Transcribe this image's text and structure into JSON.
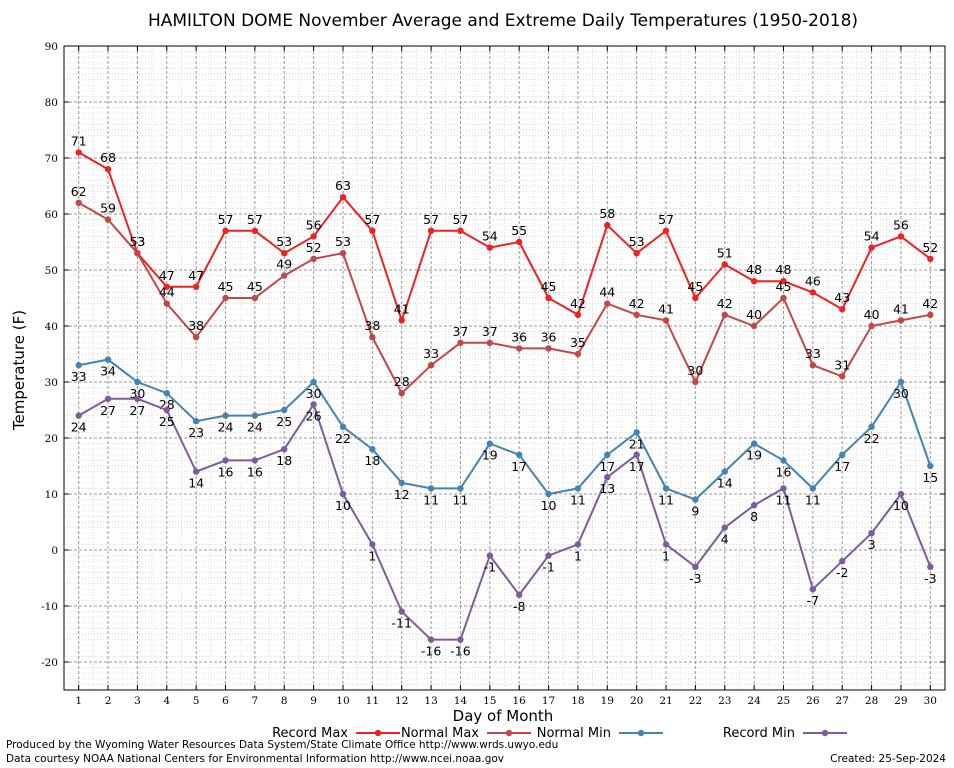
{
  "chart_data": {
    "type": "line",
    "title": "HAMILTON DOME November Average and Extreme Daily Temperatures (1950-2018)",
    "xlabel": "Day of Month",
    "ylabel": "Temperature (F)",
    "xlim": [
      0.5,
      30.5
    ],
    "ylim": [
      -25,
      90
    ],
    "yticks": [
      -20,
      -10,
      0,
      10,
      20,
      30,
      40,
      50,
      60,
      70,
      80,
      90
    ],
    "x": [
      1,
      2,
      3,
      4,
      5,
      6,
      7,
      8,
      9,
      10,
      11,
      12,
      13,
      14,
      15,
      16,
      17,
      18,
      19,
      20,
      21,
      22,
      23,
      24,
      25,
      26,
      27,
      28,
      29,
      30
    ],
    "grid": true,
    "legend_position": "bottom",
    "series": [
      {
        "name": "Record Max",
        "color": "#ee2222",
        "label_pos": "above",
        "values": [
          71,
          68,
          53,
          47,
          47,
          57,
          57,
          53,
          56,
          63,
          57,
          41,
          57,
          57,
          54,
          55,
          45,
          42,
          58,
          53,
          57,
          45,
          51,
          48,
          48,
          46,
          43,
          54,
          56,
          52
        ]
      },
      {
        "name": "Normal Max",
        "color": "#c04848",
        "label_pos": "above",
        "values": [
          62,
          59,
          53,
          44,
          38,
          45,
          45,
          49,
          52,
          53,
          38,
          28,
          33,
          37,
          37,
          36,
          36,
          35,
          44,
          42,
          41,
          30,
          42,
          40,
          45,
          33,
          31,
          40,
          41,
          42
        ]
      },
      {
        "name": "Normal Min",
        "color": "#4682b4",
        "label_pos": "below",
        "values": [
          33,
          34,
          30,
          28,
          23,
          24,
          24,
          25,
          30,
          22,
          18,
          12,
          11,
          11,
          19,
          17,
          10,
          11,
          17,
          21,
          11,
          9,
          14,
          19,
          16,
          11,
          17,
          22,
          30,
          15
        ]
      },
      {
        "name": "Record Min",
        "color": "#7e5b9a",
        "label_pos": "below",
        "values": [
          24,
          27,
          27,
          25,
          14,
          16,
          16,
          18,
          26,
          10,
          1,
          -11,
          -16,
          -16,
          -1,
          -8,
          -1,
          1,
          13,
          17,
          1,
          -3,
          4,
          8,
          11,
          -7,
          -2,
          3,
          10,
          -3
        ]
      }
    ]
  },
  "footer": {
    "produced_by": "Produced by the Wyoming Water Resources Data System/State Climate Office http://www.wrds.uwyo.edu",
    "courtesy": "Data courtesy NOAA National Centers for Environmental Information http://www.ncei.noaa.gov",
    "created": "Created:  25-Sep-2024"
  }
}
